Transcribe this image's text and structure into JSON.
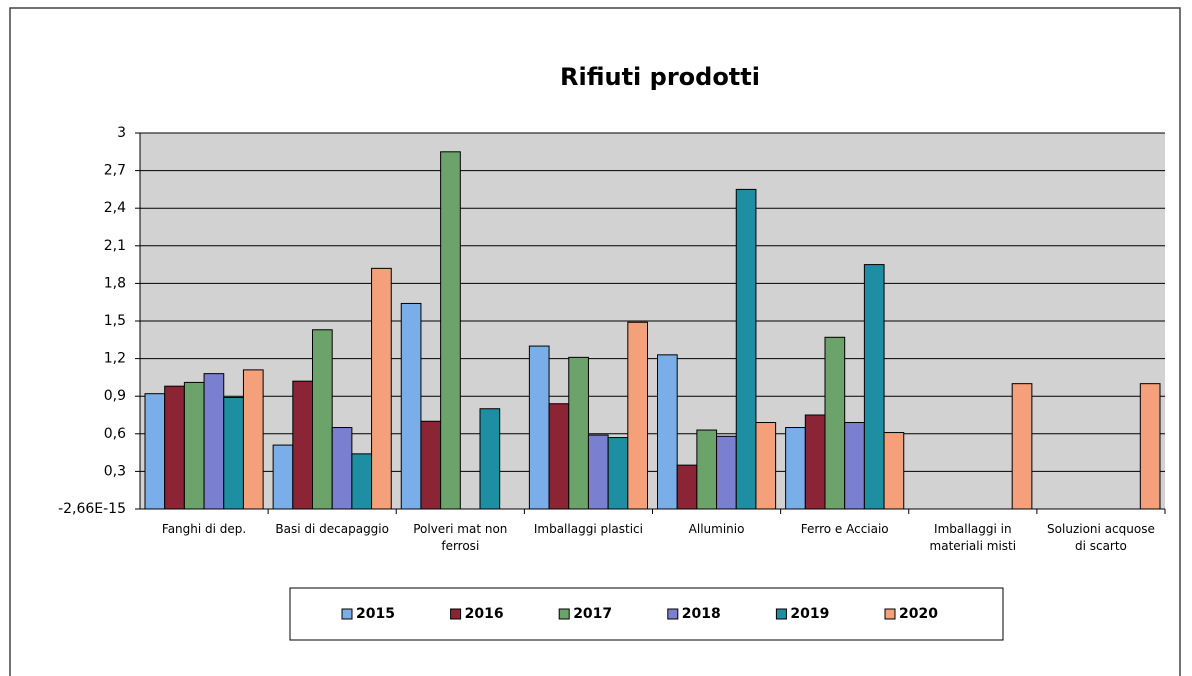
{
  "chart_data": {
    "type": "bar",
    "title": "Rifiuti prodotti",
    "categories": [
      "Fanghi di dep.",
      "Basi di decapaggio",
      "Polveri mat non ferrosi",
      "Imballaggi plastici",
      "Alluminio",
      "Ferro e Acciaio",
      "Imballaggi in materiali misti",
      "Soluzioni acquose di scarto"
    ],
    "series": [
      {
        "name": "2015",
        "color": "#7aaee8",
        "values": [
          0.92,
          0.51,
          1.64,
          1.3,
          1.23,
          0.65,
          null,
          null
        ]
      },
      {
        "name": "2016",
        "color": "#8b2535",
        "values": [
          0.98,
          1.02,
          0.7,
          0.84,
          0.35,
          0.75,
          null,
          null
        ]
      },
      {
        "name": "2017",
        "color": "#6ba36b",
        "values": [
          1.01,
          1.43,
          2.85,
          1.21,
          0.63,
          1.37,
          null,
          null
        ]
      },
      {
        "name": "2018",
        "color": "#7b7fd0",
        "values": [
          1.08,
          0.65,
          null,
          0.59,
          0.58,
          0.69,
          null,
          null
        ]
      },
      {
        "name": "2019",
        "color": "#1e8ea3",
        "values": [
          0.89,
          0.44,
          0.8,
          0.57,
          2.55,
          1.95,
          null,
          null
        ]
      },
      {
        "name": "2020",
        "color": "#f4a07a",
        "values": [
          1.11,
          1.92,
          null,
          1.49,
          0.69,
          0.61,
          1.0,
          1.0
        ]
      }
    ],
    "ylim": [
      -2.66e-15,
      3
    ],
    "yticks": [
      {
        "value": -2.66e-15,
        "label": "-2,66E-15"
      },
      {
        "value": 0.3,
        "label": "0,3"
      },
      {
        "value": 0.6,
        "label": "0,6"
      },
      {
        "value": 0.9,
        "label": "0,9"
      },
      {
        "value": 1.2,
        "label": "1,2"
      },
      {
        "value": 1.5,
        "label": "1,5"
      },
      {
        "value": 1.8,
        "label": "1,8"
      },
      {
        "value": 2.1,
        "label": "2,1"
      },
      {
        "value": 2.4,
        "label": "2,4"
      },
      {
        "value": 2.7,
        "label": "2,7"
      },
      3
    ],
    "grid": true
  }
}
